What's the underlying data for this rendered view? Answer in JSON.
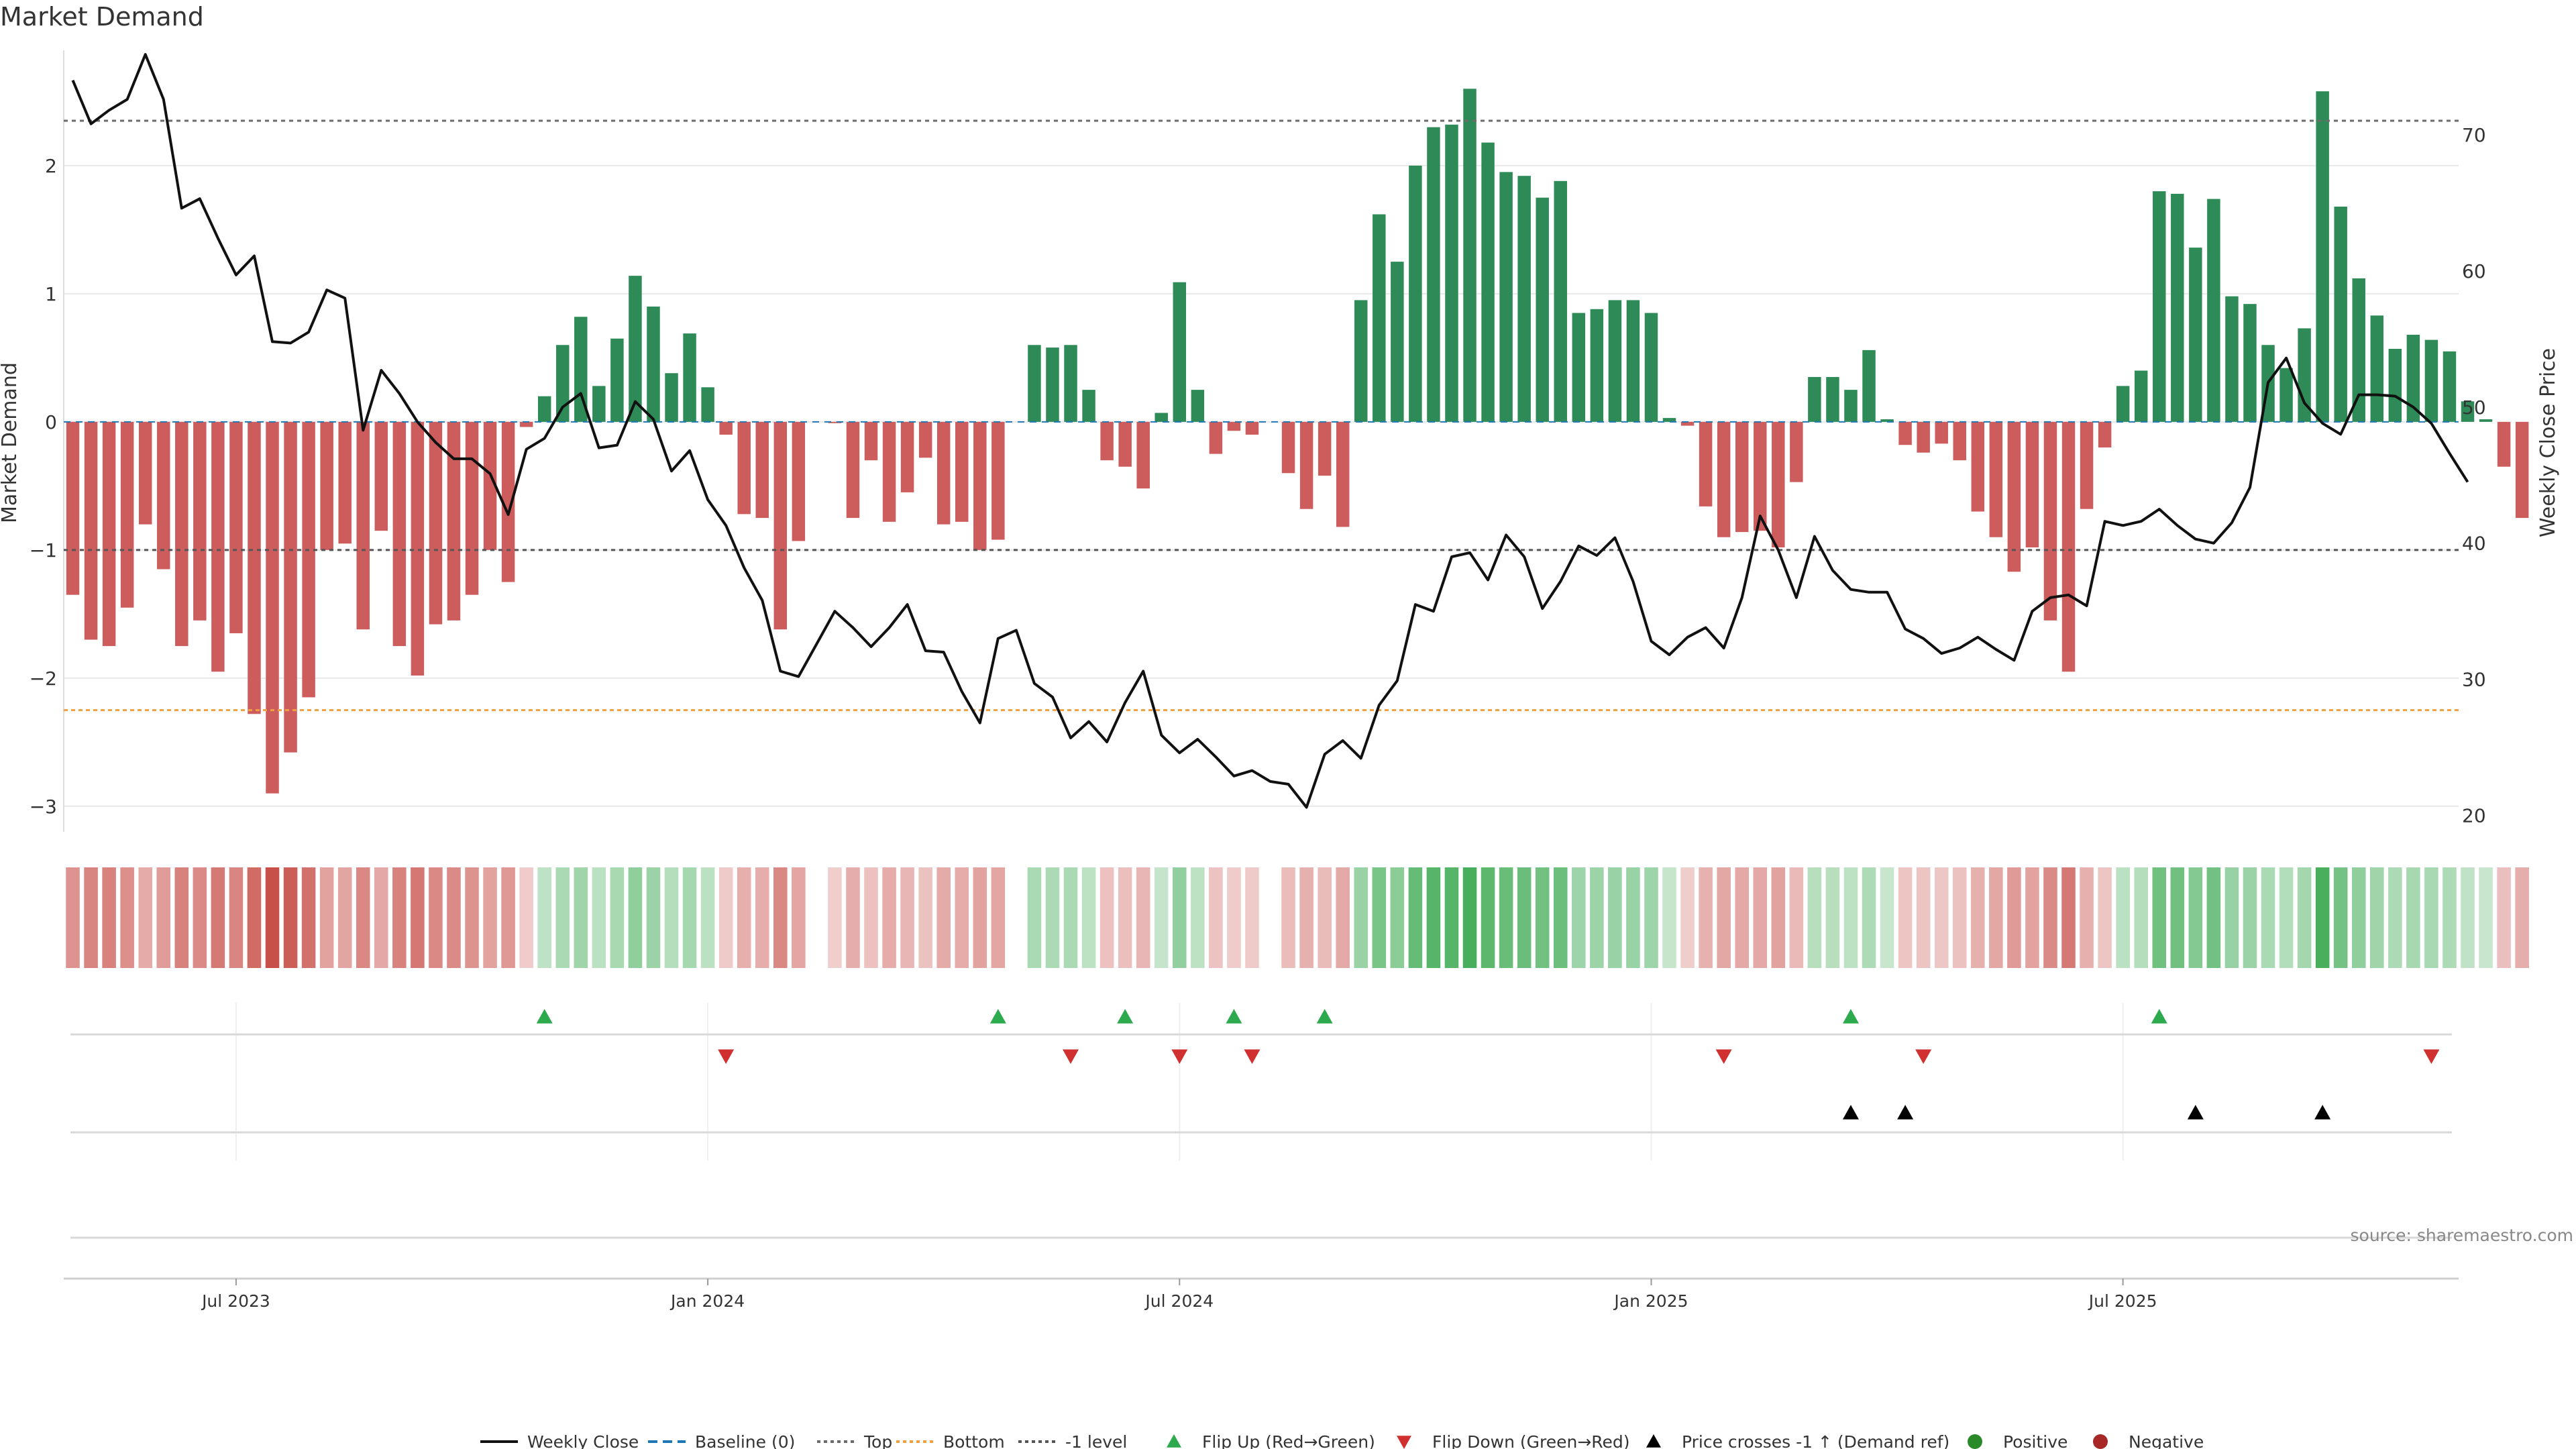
{
  "title": "Market Demand",
  "source": "source: sharemaestro.com",
  "colors": {
    "positive": "#2e8b57",
    "negative": "#cd5c5c",
    "price": "#111111",
    "top_line": "#6b6b6b",
    "bottom_line": "#f0a040",
    "minus1_line": "#555555",
    "flip_up": "#2eaa4e",
    "flip_down": "#d03030",
    "cross": "#000000",
    "baseline": "#1f77b4",
    "grid": "#e8e8e8",
    "pos_marker": "#2a8a2a",
    "neg_marker": "#a82828"
  },
  "chart_data": {
    "type": "bar",
    "title": "Market Demand",
    "ylabel": "Market Demand",
    "y2label": "Weekly Close Price",
    "ylim": [
      -3.2,
      2.9
    ],
    "y2lim": [
      18.8,
      76.2
    ],
    "yticks": [
      {
        "v": 2,
        "label": "2"
      },
      {
        "v": 1,
        "label": "1"
      },
      {
        "v": 0,
        "label": "0"
      },
      {
        "v": -1,
        "label": "−1"
      },
      {
        "v": -2,
        "label": "−2"
      },
      {
        "v": -3,
        "label": "−3"
      }
    ],
    "y2ticks": [
      {
        "v": 70,
        "label": "70"
      },
      {
        "v": 60,
        "label": "60"
      },
      {
        "v": 50,
        "label": "50"
      },
      {
        "v": 40,
        "label": "40"
      },
      {
        "v": 30,
        "label": "30"
      },
      {
        "v": 20,
        "label": "20"
      }
    ],
    "top_level": 2.35,
    "bottom_level": -2.25,
    "minus1_level": -1,
    "n_weeks": 132,
    "x_range": [
      -0.5,
      131.5
    ],
    "x_ticks": [
      {
        "label": "Jul 2023",
        "week": 9
      },
      {
        "label": "Jan 2024",
        "week": 35
      },
      {
        "label": "Jul 2024",
        "week": 61
      },
      {
        "label": "Jan 2025",
        "week": 87
      },
      {
        "label": "Jul 2025",
        "week": 113
      }
    ],
    "series": [
      {
        "name": "Market Demand",
        "values": [
          -1.35,
          -1.7,
          -1.75,
          -1.45,
          -0.8,
          -1.15,
          -1.75,
          -1.55,
          -1.95,
          -1.65,
          -2.28,
          -2.9,
          -2.58,
          -2.15,
          -1.0,
          -0.95,
          -1.62,
          -0.85,
          -1.75,
          -1.98,
          -1.58,
          -1.55,
          -1.35,
          -1.0,
          -1.25,
          -0.04,
          0.2,
          0.6,
          0.82,
          0.28,
          0.65,
          1.14,
          0.9,
          0.38,
          0.69,
          0.27,
          -0.1,
          -0.72,
          -0.75,
          -1.62,
          -0.93,
          0.0,
          -0.01,
          -0.75,
          -0.3,
          -0.78,
          -0.55,
          -0.28,
          -0.8,
          -0.78,
          -1.0,
          -0.92,
          0.0,
          0.6,
          0.58,
          0.6,
          0.25,
          -0.3,
          -0.35,
          -0.52,
          0.07,
          1.09,
          0.25,
          -0.25,
          -0.07,
          -0.1,
          0.0,
          -0.4,
          -0.68,
          -0.42,
          -0.82,
          0.95,
          1.62,
          1.25,
          2.0,
          2.3,
          2.32,
          2.6,
          2.18,
          1.95,
          1.92,
          1.75,
          1.88,
          0.85,
          0.88,
          0.95,
          0.95,
          0.85,
          0.03,
          -0.03,
          -0.66,
          -0.9,
          -0.86,
          -0.85,
          -0.98,
          -0.47,
          0.35,
          0.35,
          0.25,
          0.56,
          0.02,
          -0.18,
          -0.24,
          -0.17,
          -0.3,
          -0.7,
          -0.9,
          -1.17,
          -0.98,
          -1.55,
          -1.95,
          -0.68,
          -0.2,
          0.28,
          0.4,
          1.8,
          1.78,
          1.36,
          1.74,
          0.98,
          0.92,
          0.6,
          0.42,
          0.73,
          2.58,
          1.68,
          1.12,
          0.83,
          0.57,
          0.68,
          0.64,
          0.55,
          0.16,
          0.02,
          -0.35,
          -0.75
        ]
      },
      {
        "name": "Weekly Close",
        "axis": "right",
        "values": [
          74.0,
          70.8,
          71.8,
          72.6,
          75.9,
          72.6,
          64.6,
          65.3,
          62.4,
          59.7,
          61.1,
          54.8,
          54.7,
          55.5,
          58.6,
          58.0,
          48.3,
          52.7,
          51.0,
          48.9,
          47.4,
          46.2,
          46.2,
          45.1,
          42.1,
          46.9,
          47.7,
          50.0,
          51.0,
          47.0,
          47.2,
          50.4,
          49.1,
          45.3,
          46.8,
          43.2,
          41.3,
          38.2,
          35.8,
          30.6,
          30.2,
          32.6,
          35.0,
          33.8,
          32.4,
          33.8,
          35.5,
          32.1,
          32.0,
          29.1,
          26.8,
          33.0,
          33.6,
          29.7,
          28.7,
          25.7,
          26.9,
          25.4,
          28.3,
          30.6,
          25.9,
          24.6,
          25.6,
          24.3,
          22.9,
          23.3,
          22.5,
          22.3,
          20.6,
          24.5,
          25.5,
          24.2,
          28.1,
          29.9,
          35.5,
          35.0,
          39.0,
          39.3,
          37.3,
          40.6,
          39.0,
          35.2,
          37.2,
          39.8,
          39.1,
          40.4,
          37.2,
          32.8,
          31.8,
          33.1,
          33.8,
          32.3,
          36.0,
          42.0,
          39.5,
          36.0,
          40.5,
          38.0,
          36.6,
          36.4,
          36.4,
          33.7,
          33.0,
          31.9,
          32.3,
          33.1,
          32.2,
          31.4,
          35.0,
          36.0,
          36.2,
          35.4,
          41.6,
          41.3,
          41.6,
          42.5,
          41.3,
          40.3,
          40.0,
          41.5,
          44.1,
          51.8,
          53.6,
          50.3,
          48.8,
          48.0,
          50.9,
          50.9,
          50.8,
          50.0,
          48.8,
          46.6,
          44.5
        ]
      }
    ],
    "flip_up_weeks": [
      26,
      51,
      58,
      64,
      69,
      98,
      115
    ],
    "flip_down_weeks": [
      36,
      55,
      61,
      65,
      91,
      102,
      130
    ],
    "cross_weeks": [
      98,
      101,
      117,
      124
    ],
    "legend": [
      "Weekly Close",
      "Baseline (0)",
      "Top",
      "Bottom",
      "-1 level",
      "Flip Up (Red→Green)",
      "Flip Down (Green→Red)",
      "Price crosses -1 ↑ (Demand ref)",
      "Positive",
      "Negative"
    ],
    "legend_position": "bottom-center"
  }
}
